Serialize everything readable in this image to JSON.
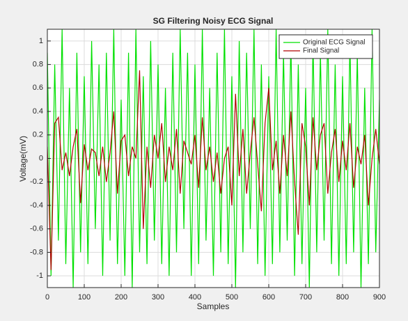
{
  "chart_data": {
    "type": "line",
    "title": "SG Filtering Noisy ECG Signal",
    "xlabel": "Samples",
    "ylabel": "Voltage(mV)",
    "x": [
      0,
      10,
      20,
      30,
      40,
      50,
      60,
      70,
      80,
      90,
      100,
      110,
      120,
      130,
      140,
      150,
      160,
      170,
      180,
      190,
      200,
      210,
      220,
      230,
      240,
      250,
      260,
      270,
      280,
      290,
      300,
      310,
      320,
      330,
      340,
      350,
      360,
      370,
      380,
      390,
      400,
      410,
      420,
      430,
      440,
      450,
      460,
      470,
      480,
      490,
      500,
      510,
      520,
      530,
      540,
      550,
      560,
      570,
      580,
      590,
      600,
      610,
      620,
      630,
      640,
      650,
      660,
      670,
      680,
      690,
      700,
      710,
      720,
      730,
      740,
      750,
      760,
      770,
      780,
      790,
      800,
      810,
      820,
      830,
      840,
      850,
      860,
      870,
      880,
      890,
      900
    ],
    "series": [
      {
        "name": "Original ECG Signal",
        "color": "#00e000",
        "values": [
          0.9,
          -1.0,
          0.8,
          -0.7,
          1.1,
          -0.9,
          0.6,
          -1.1,
          0.9,
          -0.8,
          0.7,
          -0.9,
          1.0,
          -0.6,
          0.8,
          -1.0,
          0.9,
          -0.7,
          1.1,
          -0.9,
          0.5,
          -1.0,
          0.9,
          -1.1,
          1.1,
          -0.8,
          0.7,
          -0.9,
          1.0,
          -0.7,
          0.8,
          -0.9,
          0.6,
          -1.0,
          0.9,
          -0.8,
          1.1,
          -0.6,
          0.9,
          -1.0,
          0.8,
          -0.9,
          1.1,
          -0.7,
          0.6,
          -1.0,
          0.9,
          -0.8,
          1.1,
          -0.9,
          0.7,
          -1.1,
          1.0,
          -0.8,
          0.9,
          -0.6,
          1.1,
          -0.9,
          0.8,
          -1.0,
          0.7,
          -0.9,
          1.1,
          -0.8,
          0.9,
          -0.7,
          1.0,
          -1.0,
          0.8,
          -0.9,
          0.6,
          -1.1,
          1.0,
          -0.8,
          0.9,
          -0.7,
          1.1,
          -0.9,
          0.8,
          -1.0,
          0.7,
          -0.9,
          1.0,
          -0.8,
          0.9,
          -1.1,
          0.6,
          -0.9,
          1.1,
          -0.8,
          0.5
        ]
      },
      {
        "name": "Final Signal",
        "color": "#b00000",
        "values": [
          0.1,
          -0.95,
          0.3,
          0.35,
          -0.1,
          0.05,
          -0.15,
          0.1,
          0.25,
          -0.38,
          0.12,
          -0.1,
          0.08,
          0.05,
          -0.15,
          0.1,
          -0.2,
          0.05,
          0.4,
          -0.3,
          0.15,
          0.2,
          -0.15,
          0.1,
          0.0,
          0.75,
          -0.6,
          0.1,
          -0.25,
          0.2,
          0.0,
          0.3,
          -0.2,
          0.1,
          -0.1,
          0.25,
          -0.3,
          0.15,
          0.05,
          -0.05,
          0.2,
          -0.25,
          0.35,
          -0.1,
          0.1,
          -0.2,
          0.05,
          -0.3,
          0.0,
          0.1,
          -0.4,
          0.55,
          -0.15,
          0.25,
          -0.3,
          0.05,
          0.35,
          -0.05,
          -0.45,
          0.3,
          0.6,
          -0.1,
          0.15,
          -0.3,
          0.2,
          -0.15,
          0.4,
          -0.2,
          -0.65,
          0.3,
          0.1,
          -0.4,
          0.35,
          -0.1,
          0.2,
          0.3,
          -0.3,
          0.05,
          0.25,
          -0.2,
          0.15,
          -0.1,
          0.3,
          -0.25,
          0.1,
          -0.05,
          0.2,
          -0.4,
          0.0,
          0.25,
          -0.05
        ]
      }
    ],
    "xlim": [
      0,
      900
    ],
    "xticks": [
      0,
      100,
      200,
      300,
      400,
      500,
      600,
      700,
      800,
      900
    ],
    "ylim": [
      -1.1,
      1.1
    ],
    "yticks": [
      -1,
      -0.8,
      -0.6,
      -0.4,
      -0.2,
      0,
      0.2,
      0.4,
      0.6,
      0.8,
      1
    ],
    "grid": true,
    "legend": "northeast"
  }
}
